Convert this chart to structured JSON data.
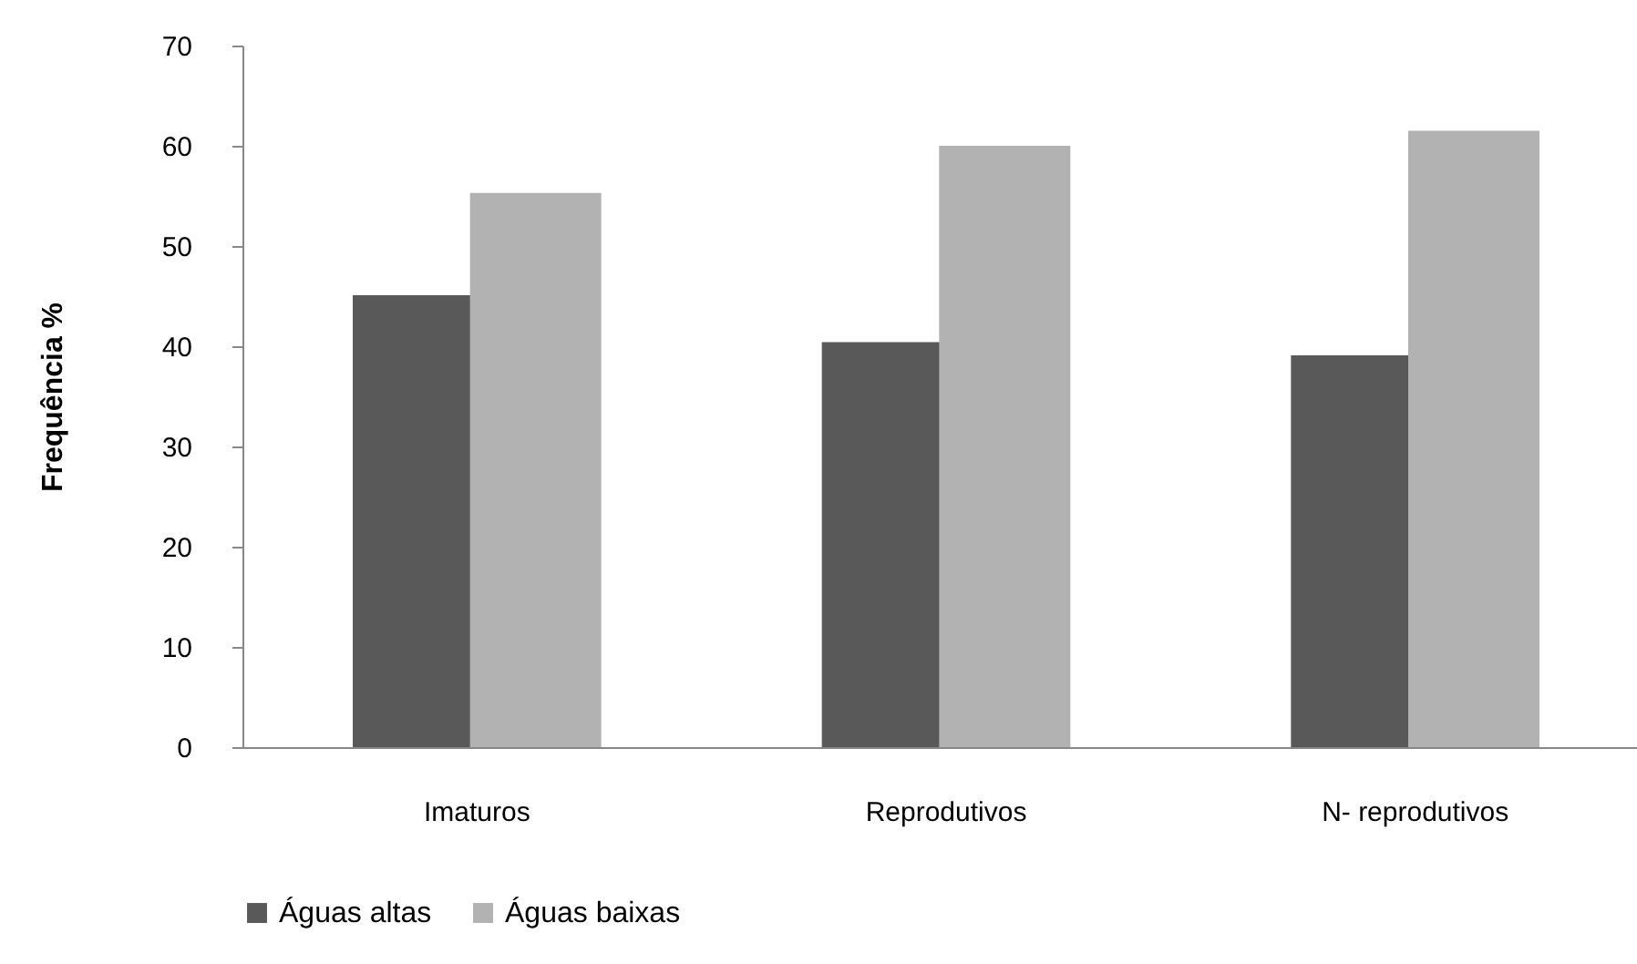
{
  "chart_data": {
    "type": "bar",
    "ylabel": "Frequência %",
    "categories": [
      "Imaturos",
      "Reprodutivos",
      "N- reprodutivos"
    ],
    "series": [
      {
        "name": "Águas altas",
        "color": "#595959",
        "values": [
          45.1,
          40.4,
          39.1
        ]
      },
      {
        "name": "Águas baixas",
        "color": "#b2b2b2",
        "values": [
          55.3,
          60,
          61.5
        ]
      }
    ],
    "ylim": [
      0,
      70
    ],
    "yticks": [
      0,
      10,
      20,
      30,
      40,
      50,
      60,
      70
    ],
    "grid": false,
    "legend": "bottom"
  }
}
